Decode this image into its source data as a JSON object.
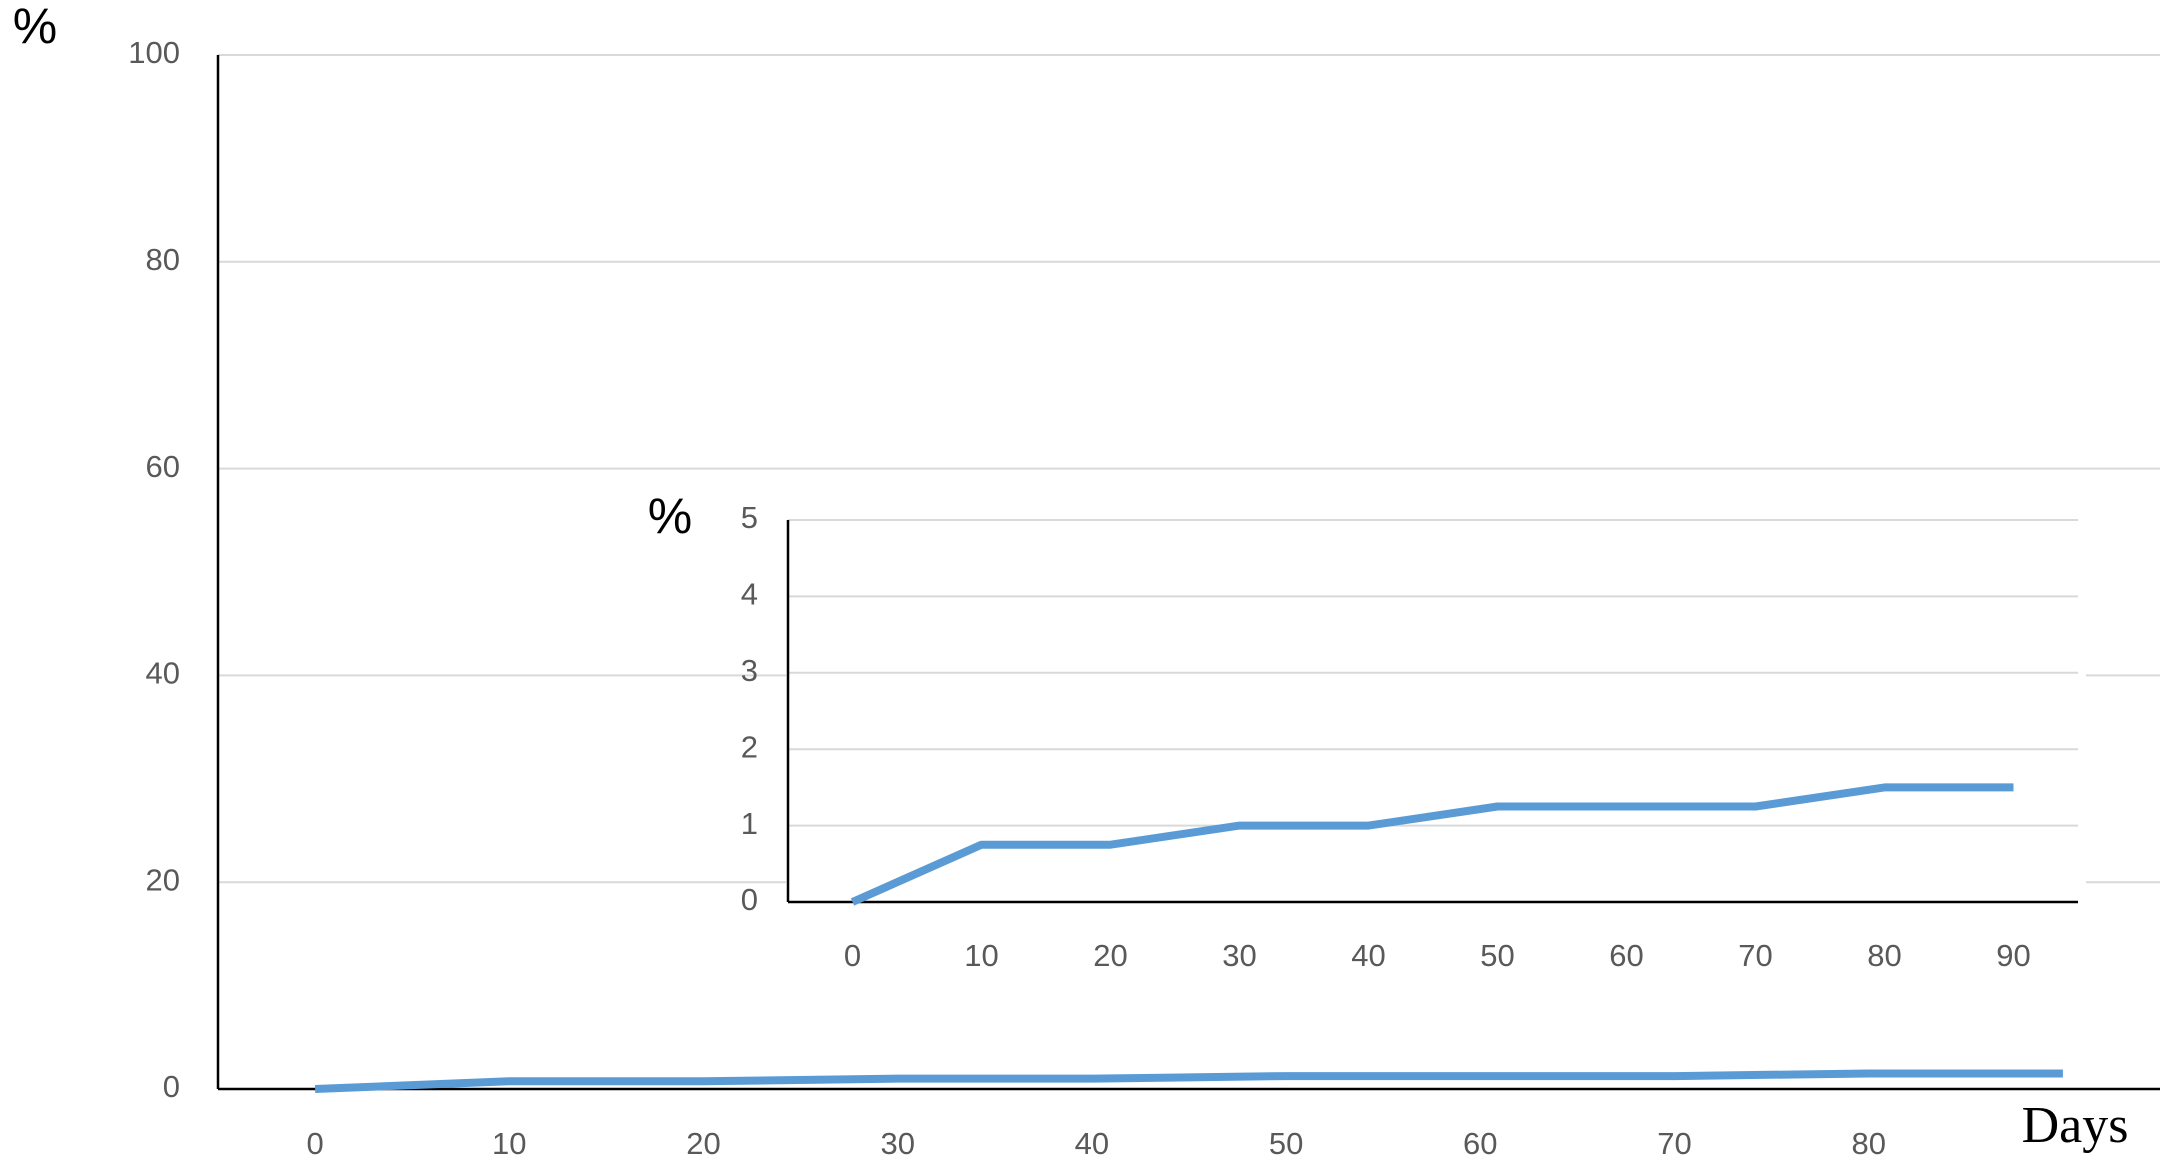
{
  "chart_data": [
    {
      "type": "line",
      "y_label": "%",
      "x_label": "Days",
      "categories": [
        0,
        10,
        20,
        30,
        40,
        50,
        60,
        70,
        80,
        null
      ],
      "series": [
        {
          "color": "#5b9bd5",
          "values": [
            0,
            0.75,
            0.75,
            1,
            1,
            1.25,
            1.25,
            1.25,
            1.5,
            1.5
          ]
        }
      ],
      "ylim": [
        0,
        100
      ],
      "yticks": [
        0,
        20,
        40,
        60,
        80,
        100
      ],
      "grid": true
    },
    {
      "type": "line",
      "y_label": "%",
      "categories": [
        0,
        10,
        20,
        30,
        40,
        50,
        60,
        70,
        80,
        90
      ],
      "series": [
        {
          "color": "#5b9bd5",
          "values": [
            0,
            0.75,
            0.75,
            1,
            1,
            1.25,
            1.25,
            1.25,
            1.5,
            1.5
          ]
        }
      ],
      "ylim": [
        0,
        5
      ],
      "yticks": [
        0,
        1,
        2,
        3,
        4,
        5
      ],
      "grid": true
    }
  ]
}
